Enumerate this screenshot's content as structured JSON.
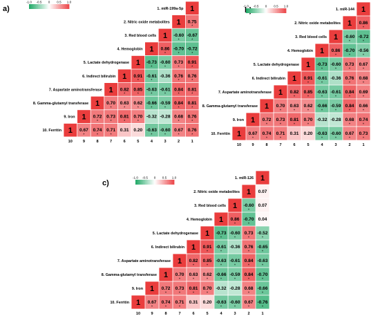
{
  "chart_data": [
    {
      "type": "heatmap",
      "panel_label": "a)",
      "labels": [
        "1. miR-199a-5p",
        "2. Nitric oxide metabolites",
        "3. Red blood cells",
        "4. Hemoglobin",
        "5. Lactate dehydrogenase",
        "6. Indirect bilirubin",
        "7. Aspartate aminotransferase",
        "8. Gamma-glutamyl transferase",
        "9. Iron",
        "10. Ferritin"
      ],
      "bottom_ticks": [
        "10",
        "9",
        "8",
        "7",
        "6",
        "5",
        "4",
        "3",
        "2",
        "1"
      ],
      "legend_ticks": [
        "-1.0",
        "-0.5",
        "0",
        "0.5",
        "1.0"
      ],
      "values": [
        [
          1
        ],
        [
          0.75,
          1
        ],
        [
          -0.67,
          -0.6,
          1
        ],
        [
          -0.72,
          -0.7,
          0.86,
          1
        ],
        [
          0.91,
          0.73,
          -0.6,
          -0.73,
          1
        ],
        [
          0.76,
          0.76,
          -0.36,
          -0.61,
          0.91,
          1
        ],
        [
          0.81,
          0.84,
          -0.61,
          -0.63,
          0.85,
          0.82,
          1
        ],
        [
          0.81,
          0.84,
          -0.59,
          -0.66,
          0.62,
          0.63,
          0.7,
          1
        ],
        [
          0.76,
          0.68,
          -0.28,
          -0.32,
          0.7,
          0.81,
          0.73,
          0.72,
          1
        ],
        [
          0.76,
          0.67,
          -0.6,
          -0.63,
          0.2,
          0.31,
          0.71,
          0.74,
          0.67,
          1
        ]
      ],
      "stars": [
        [
          0
        ],
        [
          1,
          0
        ],
        [
          1,
          1,
          0
        ],
        [
          1,
          1,
          1,
          0
        ],
        [
          1,
          1,
          1,
          1,
          0
        ],
        [
          1,
          1,
          0,
          1,
          1,
          0
        ],
        [
          1,
          1,
          1,
          1,
          1,
          1,
          0
        ],
        [
          1,
          1,
          1,
          1,
          1,
          1,
          1,
          0
        ],
        [
          1,
          1,
          0,
          0,
          1,
          1,
          1,
          1,
          0
        ],
        [
          1,
          1,
          1,
          1,
          0,
          0,
          1,
          1,
          1,
          0
        ]
      ]
    },
    {
      "type": "heatmap",
      "panel_label": "b)",
      "labels": [
        "1. miR-144",
        "2. Nitric oxide metabolites",
        "3. Red blood cells",
        "4. Hemoglobin",
        "5. Lactate dehydrogenase",
        "6. Indirect bilirubin",
        "7. Aspartate aminotransferase",
        "8. Gamma-glutamyl transferase",
        "9. Iron",
        "10. Ferritin"
      ],
      "bottom_ticks": [
        "10",
        "9",
        "8",
        "7",
        "6",
        "5",
        "4",
        "3",
        "2",
        "1"
      ],
      "legend_ticks": [
        "-1.0",
        "-0.5",
        "0",
        "0.5",
        "1.0"
      ],
      "values": [
        [
          1
        ],
        [
          0.86,
          1
        ],
        [
          -0.72,
          -0.6,
          1
        ],
        [
          -0.56,
          -0.7,
          0.86,
          1
        ],
        [
          0.67,
          0.73,
          -0.6,
          -0.73,
          1
        ],
        [
          0.68,
          0.76,
          -0.36,
          -0.61,
          0.91,
          1
        ],
        [
          0.69,
          0.84,
          -0.61,
          -0.63,
          0.85,
          0.82,
          1
        ],
        [
          0.66,
          0.84,
          -0.59,
          -0.66,
          0.62,
          0.63,
          0.7,
          1
        ],
        [
          0.74,
          0.68,
          -0.28,
          -0.32,
          0.7,
          0.81,
          0.73,
          0.72,
          1
        ],
        [
          0.73,
          0.67,
          -0.6,
          -0.63,
          0.2,
          0.31,
          0.71,
          0.74,
          0.67,
          1
        ]
      ],
      "stars": [
        [
          0
        ],
        [
          1,
          0
        ],
        [
          1,
          1,
          0
        ],
        [
          1,
          1,
          1,
          0
        ],
        [
          1,
          1,
          1,
          1,
          0
        ],
        [
          1,
          1,
          0,
          1,
          1,
          0
        ],
        [
          1,
          1,
          1,
          1,
          1,
          1,
          0
        ],
        [
          1,
          1,
          1,
          1,
          1,
          1,
          1,
          0
        ],
        [
          1,
          1,
          0,
          0,
          1,
          1,
          1,
          1,
          0
        ],
        [
          1,
          1,
          1,
          1,
          0,
          0,
          1,
          1,
          1,
          0
        ]
      ]
    },
    {
      "type": "heatmap",
      "panel_label": "c)",
      "labels": [
        "1. miR-126",
        "2. Nitric oxide metabolites",
        "3. Red blood cells",
        "4. Hemoglobin",
        "5. Lactate dehydrogenase",
        "6. Indirect bilirubin",
        "7. Aspartate aminotransferase",
        "8. Gamma-glutamyl transferase",
        "9. Iron",
        "10. Ferritin"
      ],
      "bottom_ticks": [
        "10",
        "9",
        "8",
        "7",
        "6",
        "5",
        "4",
        "3",
        "2",
        "1"
      ],
      "legend_ticks": [
        "-1.0",
        "-0.5",
        "0",
        "0.5",
        "1.0"
      ],
      "values": [
        [
          1
        ],
        [
          0.07,
          1
        ],
        [
          0.07,
          -0.6,
          1
        ],
        [
          0.04,
          -0.7,
          0.86,
          1
        ],
        [
          -0.52,
          0.73,
          -0.6,
          -0.73,
          1
        ],
        [
          -0.65,
          0.76,
          -0.36,
          -0.61,
          0.91,
          1
        ],
        [
          -0.63,
          0.84,
          -0.61,
          -0.63,
          0.85,
          0.82,
          1
        ],
        [
          -0.7,
          0.84,
          -0.59,
          -0.66,
          0.62,
          0.63,
          0.7,
          1
        ],
        [
          -0.66,
          0.68,
          -0.28,
          -0.32,
          0.7,
          0.81,
          0.73,
          0.72,
          1
        ],
        [
          -0.76,
          0.67,
          -0.6,
          -0.63,
          0.2,
          0.31,
          0.71,
          0.74,
          0.67,
          1
        ]
      ],
      "stars": [
        [
          0
        ],
        [
          0,
          0
        ],
        [
          0,
          1,
          0
        ],
        [
          0,
          1,
          1,
          0
        ],
        [
          1,
          1,
          1,
          1,
          0
        ],
        [
          1,
          1,
          0,
          1,
          1,
          0
        ],
        [
          1,
          1,
          1,
          1,
          1,
          1,
          0
        ],
        [
          1,
          1,
          1,
          1,
          1,
          1,
          1,
          0
        ],
        [
          1,
          1,
          0,
          0,
          1,
          1,
          1,
          1,
          0
        ],
        [
          1,
          1,
          1,
          1,
          0,
          0,
          1,
          1,
          1,
          0
        ]
      ]
    }
  ],
  "colors": {
    "negative": "#1fa866",
    "neutral": "#ffffff",
    "positive": "#ec4548",
    "diagonal": "#ea3d3d"
  }
}
